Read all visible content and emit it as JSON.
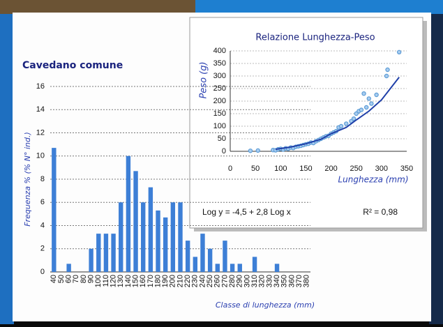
{
  "chart_data": [
    {
      "type": "bar",
      "title": "Cavedano comune",
      "y_label": "Frequenza % (% N° ind.)",
      "x_label": "Classe di lunghezza (mm)",
      "categories": [
        "40",
        "50",
        "60",
        "70",
        "80",
        "90",
        "100",
        "110",
        "120",
        "130",
        "140",
        "150",
        "160",
        "170",
        "180",
        "190",
        "200",
        "210",
        "220",
        "230",
        "240",
        "250",
        "260",
        "270",
        "280",
        "290",
        "300",
        "310",
        "320",
        "330",
        "340",
        "350",
        "360",
        "370",
        "380"
      ],
      "values": [
        10.7,
        0,
        0.7,
        0,
        0,
        2,
        3.3,
        3.3,
        3.3,
        6,
        10,
        8.7,
        6,
        7.3,
        5.3,
        4.7,
        6,
        6,
        2.7,
        1.3,
        3.3,
        2,
        0.7,
        2.7,
        0.7,
        0.7,
        0,
        1.3,
        0,
        0,
        0.7,
        0,
        0,
        0,
        0
      ],
      "color": "#3d7fd6",
      "ylim": [
        0,
        16
      ],
      "yticks": [
        0,
        2,
        4,
        6,
        8,
        10,
        12,
        14,
        16
      ],
      "grid": true
    },
    {
      "type": "scatter",
      "title": "Relazione Lunghezza-Peso",
      "y_label": "Peso (g)",
      "x_label": "Lunghezza (mm)",
      "points": {
        "color": "#5b9bd5",
        "x": [
          40,
          55,
          85,
          90,
          95,
          100,
          105,
          110,
          115,
          120,
          125,
          130,
          135,
          140,
          145,
          150,
          155,
          160,
          165,
          170,
          175,
          180,
          185,
          190,
          195,
          200,
          205,
          210,
          215,
          220,
          230,
          240,
          245,
          250,
          255,
          260,
          265,
          270,
          275,
          280,
          290,
          310,
          312,
          335
        ],
        "y": [
          2,
          3,
          5,
          4,
          8,
          10,
          7,
          12,
          10,
          15,
          13,
          18,
          20,
          22,
          25,
          28,
          30,
          35,
          33,
          40,
          45,
          50,
          55,
          60,
          62,
          70,
          75,
          80,
          95,
          100,
          110,
          120,
          130,
          150,
          160,
          165,
          230,
          175,
          210,
          190,
          225,
          300,
          325,
          395
        ]
      },
      "fit": {
        "color": "#1f3fa8",
        "x": [
          90,
          120,
          150,
          180,
          200,
          230,
          250,
          275,
          300,
          335
        ],
        "y": [
          8,
          17,
          30,
          48,
          70,
          95,
          125,
          160,
          205,
          295
        ]
      },
      "xlim": [
        0,
        350
      ],
      "xticks": [
        0,
        50,
        100,
        150,
        200,
        250,
        300,
        350
      ],
      "ylim": [
        0,
        400
      ],
      "yticks": [
        0,
        50,
        100,
        150,
        200,
        250,
        300,
        350,
        400
      ],
      "grid": true,
      "annotations": [
        "Log y = -4,5 + 2,8 Log x",
        "R² = 0,98"
      ]
    }
  ]
}
